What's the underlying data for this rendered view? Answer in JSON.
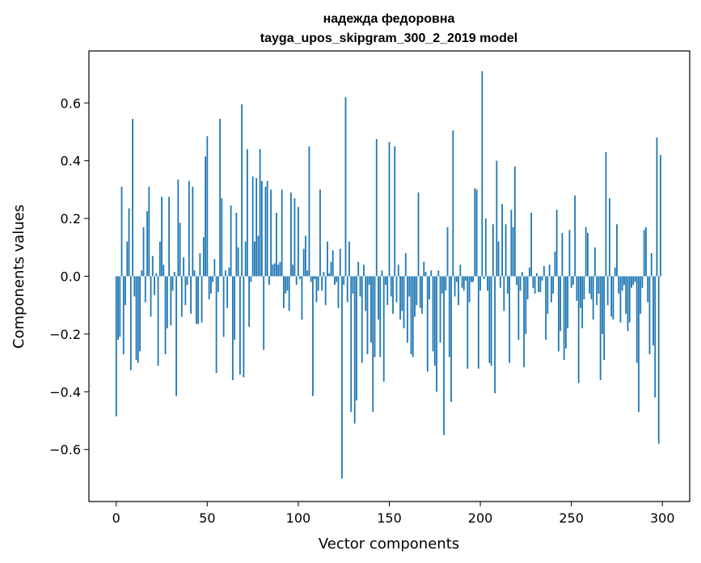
{
  "chart_data": {
    "type": "bar",
    "title": "надежда федоровна",
    "subtitle": "tayga_upos_skipgram_300_2_2019 model",
    "xlabel": "Vector components",
    "ylabel": "Components values",
    "xlim": [
      -15,
      315
    ],
    "ylim": [
      -0.78,
      0.78
    ],
    "xticks": [
      0,
      50,
      100,
      150,
      200,
      250,
      300
    ],
    "yticks": [
      -0.6,
      -0.4,
      -0.2,
      0.0,
      0.2,
      0.4,
      0.6
    ],
    "xtick_labels": [
      "0",
      "50",
      "100",
      "150",
      "200",
      "250",
      "300"
    ],
    "ytick_labels": [
      "−0.6",
      "−0.4",
      "−0.2",
      "0.0",
      "0.2",
      "0.4",
      "0.6"
    ],
    "grid": false,
    "bar_color": "#1f77b4",
    "values": [
      -0.485,
      -0.22,
      -0.21,
      0.31,
      -0.27,
      -0.1,
      0.12,
      0.235,
      -0.325,
      0.545,
      -0.07,
      -0.29,
      -0.3,
      -0.26,
      0.02,
      0.17,
      -0.09,
      0.225,
      0.31,
      -0.14,
      0.07,
      -0.065,
      0.01,
      -0.31,
      0.12,
      0.275,
      0.04,
      -0.27,
      -0.18,
      0.275,
      -0.17,
      -0.05,
      0.015,
      -0.415,
      0.335,
      0.185,
      -0.14,
      0.065,
      -0.1,
      -0.03,
      0.33,
      -0.13,
      0.31,
      0.02,
      -0.165,
      -0.165,
      0.08,
      -0.16,
      0.135,
      0.415,
      0.485,
      -0.08,
      -0.06,
      -0.02,
      0.06,
      -0.335,
      -0.055,
      0.545,
      0.27,
      -0.21,
      0.02,
      -0.11,
      0.03,
      0.245,
      -0.36,
      -0.22,
      0.22,
      0.1,
      -0.34,
      0.595,
      -0.35,
      0.12,
      0.44,
      -0.175,
      -0.02,
      0.345,
      0.12,
      0.34,
      0.14,
      0.44,
      0.33,
      -0.255,
      0.31,
      0.33,
      -0.03,
      0.3,
      0.04,
      0.045,
      0.22,
      0.04,
      0.05,
      0.3,
      -0.11,
      -0.06,
      -0.05,
      -0.12,
      0.29,
      0.04,
      0.27,
      -0.03,
      0.24,
      -0.01,
      -0.15,
      0.095,
      0.14,
      0.02,
      0.45,
      -0.02,
      -0.415,
      -0.01,
      -0.09,
      -0.05,
      0.3,
      -0.05,
      0.015,
      -0.1,
      0.12,
      0.01,
      0.05,
      0.09,
      -0.03,
      -0.02,
      -0.11,
      0.095,
      -0.7,
      -0.03,
      0.62,
      -0.09,
      0.12,
      -0.47,
      -0.06,
      -0.51,
      -0.43,
      0.05,
      -0.07,
      -0.3,
      0.04,
      -0.12,
      -0.27,
      -0.03,
      -0.23,
      -0.47,
      -0.28,
      0.475,
      -0.15,
      -0.28,
      0.02,
      -0.365,
      -0.03,
      -0.1,
      0.465,
      -0.07,
      -0.13,
      0.45,
      -0.09,
      0.04,
      -0.15,
      -0.12,
      -0.18,
      0.08,
      -0.23,
      -0.07,
      -0.27,
      -0.28,
      -0.14,
      -0.1,
      0.29,
      -0.11,
      -0.13,
      0.05,
      0.015,
      -0.33,
      -0.08,
      0.02,
      -0.26,
      -0.31,
      -0.4,
      0.02,
      -0.23,
      -0.06,
      -0.55,
      -0.05,
      0.17,
      -0.28,
      -0.435,
      0.505,
      -0.07,
      -0.02,
      -0.1,
      0.04,
      -0.04,
      -0.05,
      -0.015,
      -0.32,
      -0.09,
      -0.02,
      -0.02,
      0.305,
      0.3,
      -0.32,
      -0.05,
      0.71,
      -0.01,
      0.2,
      -0.05,
      -0.3,
      -0.31,
      0.18,
      -0.405,
      0.4,
      0.12,
      -0.04,
      0.25,
      -0.12,
      0.18,
      -0.06,
      -0.3,
      0.23,
      0.17,
      0.38,
      -0.03,
      -0.22,
      -0.05,
      0.015,
      -0.315,
      -0.2,
      -0.08,
      0.03,
      0.22,
      -0.04,
      -0.06,
      0.01,
      -0.055,
      -0.055,
      -0.015,
      0.035,
      -0.22,
      -0.13,
      0.04,
      -0.09,
      -0.06,
      0.085,
      0.23,
      -0.26,
      -0.19,
      0.15,
      -0.29,
      -0.25,
      -0.18,
      0.16,
      -0.04,
      -0.03,
      0.28,
      -0.085,
      -0.37,
      -0.11,
      -0.18,
      -0.08,
      0.17,
      0.15,
      -0.06,
      -0.08,
      -0.15,
      0.1,
      -0.1,
      -0.06,
      -0.36,
      -0.2,
      -0.29,
      0.43,
      -0.1,
      0.27,
      -0.14,
      -0.15,
      0.03,
      0.18,
      -0.06,
      -0.16,
      -0.05,
      -0.03,
      -0.13,
      -0.19,
      -0.16,
      -0.04,
      -0.03,
      -0.02,
      -0.3,
      -0.47,
      -0.13,
      -0.04,
      0.16,
      0.17,
      -0.09,
      -0.27,
      0.08,
      -0.24,
      -0.42,
      0.48,
      -0.58,
      0.42
    ]
  }
}
